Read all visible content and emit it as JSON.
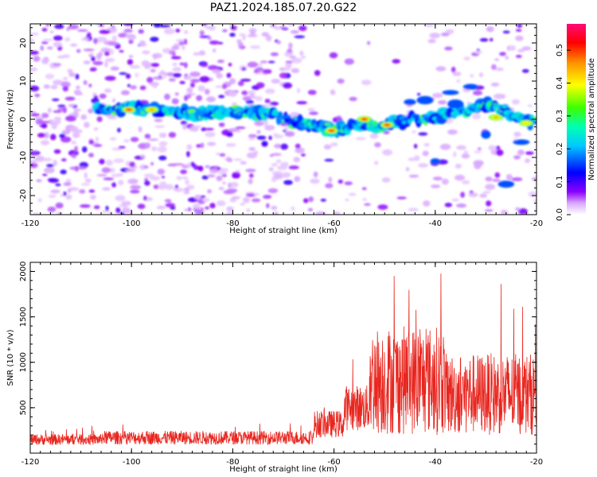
{
  "title": "PAZ1.2024.185.07.20.G22",
  "chart_data": [
    {
      "type": "heatmap",
      "xlabel": "Height of straight line (km)",
      "ylabel": "Frequency (Hz)",
      "xlim": [
        -120,
        -20
      ],
      "ylim": [
        -25,
        25
      ],
      "x_ticks": [
        "-120",
        "-100",
        "-80",
        "-60",
        "-40",
        "-20"
      ],
      "y_ticks": [
        "20",
        "10",
        "0",
        "-10",
        "-20"
      ],
      "colorbar": {
        "label": "Normalized spectral amplitude",
        "range": [
          0,
          0.58
        ],
        "ticks": [
          "0.0",
          "0.1",
          "0.2",
          "0.3",
          "0.4",
          "0.5"
        ]
      },
      "ridge": {
        "x": [
          -107,
          -100,
          -95,
          -90,
          -85,
          -80,
          -75,
          -70,
          -65,
          -60,
          -55,
          -50,
          -45,
          -40,
          -35,
          -30,
          -25,
          -20
        ],
        "y": [
          3,
          2.8,
          2.4,
          1.8,
          1.5,
          2.4,
          1.5,
          0.5,
          -1.5,
          -3,
          -1,
          -2,
          0,
          0.5,
          2.5,
          4,
          1,
          -1
        ]
      },
      "hotspots": [
        {
          "x": -100.5,
          "y": 2.5,
          "value": 0.55
        },
        {
          "x": -96,
          "y": 2.5,
          "value": 0.45
        },
        {
          "x": -60.5,
          "y": -3,
          "value": 0.5
        },
        {
          "x": -54,
          "y": 0,
          "value": 0.52
        },
        {
          "x": -49.5,
          "y": -1.5,
          "value": 0.5
        },
        {
          "x": -28,
          "y": 0.5,
          "value": 0.45
        },
        {
          "x": -22,
          "y": -1,
          "value": 0.4
        }
      ]
    },
    {
      "type": "line",
      "xlabel": "Height of straight line (km)",
      "ylabel": "SNR (10 * v/v)",
      "xlim": [
        -120,
        -20
      ],
      "ylim": [
        0,
        2100
      ],
      "x_ticks": [
        "-120",
        "-100",
        "-80",
        "-60",
        "-40",
        "-20"
      ],
      "y_ticks": [
        "500",
        "1000",
        "1500",
        "2000"
      ],
      "color": "#e8261f",
      "segments": [
        {
          "x": [
            -120,
            -106
          ],
          "mean": 150,
          "amplitude": 120
        },
        {
          "x": [
            -106,
            -64
          ],
          "mean": 170,
          "amplitude": 150
        },
        {
          "x": [
            -64,
            -58
          ],
          "mean": 320,
          "amplitude": 300
        },
        {
          "x": [
            -58,
            -53
          ],
          "mean": 500,
          "amplitude": 500
        },
        {
          "x": [
            -53,
            -38
          ],
          "mean": 800,
          "amplitude": 1200
        },
        {
          "x": [
            -38,
            -20
          ],
          "mean": 650,
          "amplitude": 900
        }
      ]
    }
  ]
}
